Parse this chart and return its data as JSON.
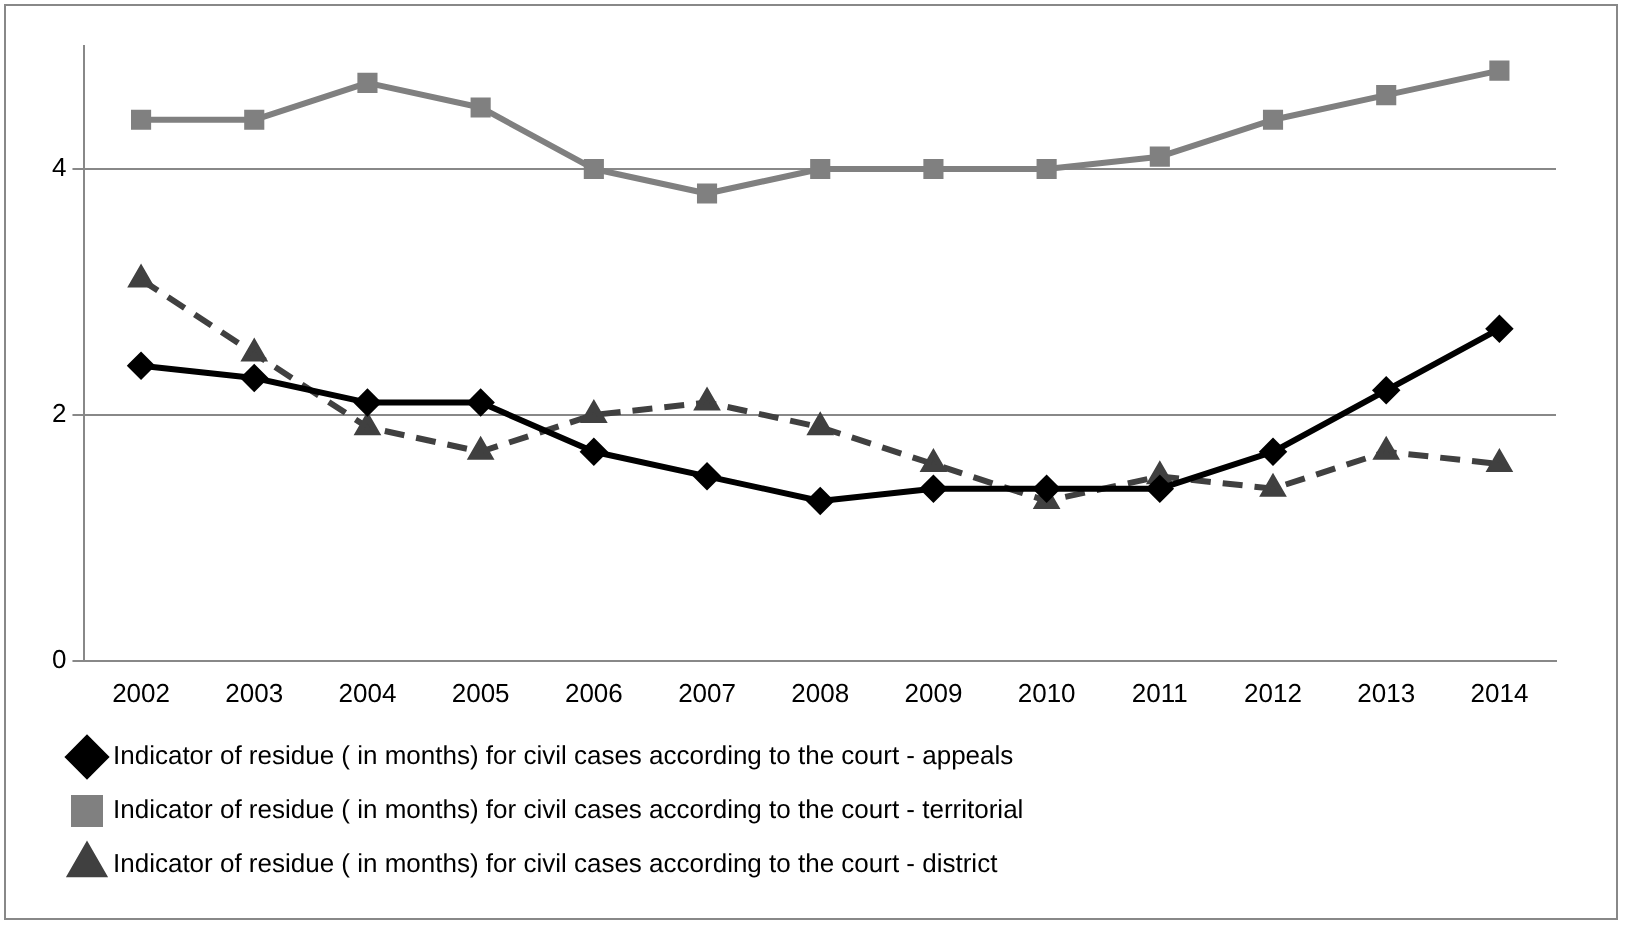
{
  "chart_data": {
    "type": "line",
    "categories": [
      "2002",
      "2003",
      "2004",
      "2005",
      "2006",
      "2007",
      "2008",
      "2009",
      "2010",
      "2011",
      "2012",
      "2013",
      "2014"
    ],
    "series": [
      {
        "name": "Indicator of residue ( in months) for civil cases according to the court - appeals",
        "color": "#000000",
        "marker": "diamond",
        "line_style": "solid",
        "values": [
          2.4,
          2.3,
          2.1,
          2.1,
          1.7,
          1.5,
          1.3,
          1.4,
          1.4,
          1.4,
          1.7,
          2.2,
          2.7
        ]
      },
      {
        "name": "Indicator of residue ( in months) for civil cases according to the court - territorial",
        "color": "#808080",
        "marker": "square",
        "line_style": "solid",
        "values": [
          4.4,
          4.4,
          4.7,
          4.5,
          4.0,
          3.8,
          4.0,
          4.0,
          4.0,
          4.1,
          4.4,
          4.6,
          4.8
        ]
      },
      {
        "name": "Indicator of residue ( in months) for civil cases according to the court - district",
        "color": "#404040",
        "marker": "triangle",
        "line_style": "dashed",
        "values": [
          3.1,
          2.5,
          1.9,
          1.7,
          2.0,
          2.1,
          1.9,
          1.6,
          1.3,
          1.5,
          1.4,
          1.7,
          1.6
        ]
      }
    ],
    "ylim": [
      0,
      5
    ],
    "yticks": [
      0,
      2,
      4
    ],
    "grid": "y",
    "legend": "bottom"
  }
}
